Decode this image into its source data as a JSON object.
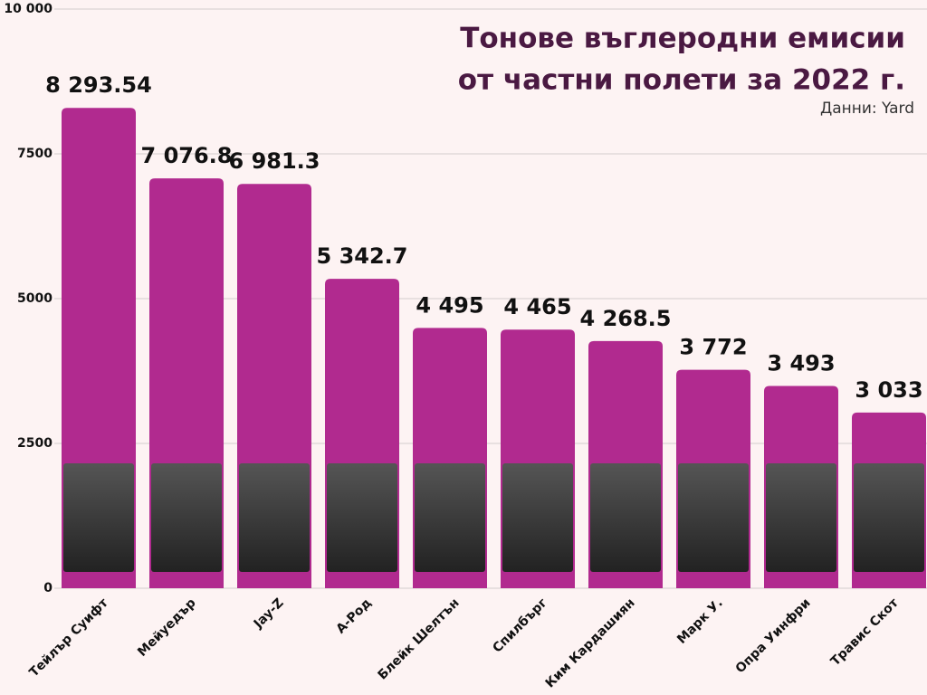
{
  "chart_data": {
    "type": "bar",
    "title": [
      "Тонове въглеродни емисии",
      "от частни полети за 2022 г."
    ],
    "source": "Данни: Yard",
    "categories": [
      "Тейлър Суифт",
      "Мейуедър",
      "Jay-Z",
      "А-Род",
      "Блейк Шелтън",
      "Спилбърг",
      "Ким Кардашиян",
      "Марк У.",
      "Опра Уинфри",
      "Травис Скот"
    ],
    "values": [
      8293.54,
      7076.8,
      6981.3,
      5342.7,
      4495,
      4465,
      4268.5,
      3772,
      3493,
      3033
    ],
    "value_labels": [
      "8 293.54",
      "7 076.8",
      "6 981.3",
      "5 342.7",
      "4 495",
      "4 465",
      "4 268.5",
      "3 772",
      "3 493",
      "3 033"
    ],
    "color": "#b12a8f",
    "ylim": [
      0,
      10000
    ],
    "yticks": [
      0,
      2500,
      5000,
      7500,
      {
        "value": 10000,
        "label": "10 000"
      }
    ],
    "grid": true
  }
}
